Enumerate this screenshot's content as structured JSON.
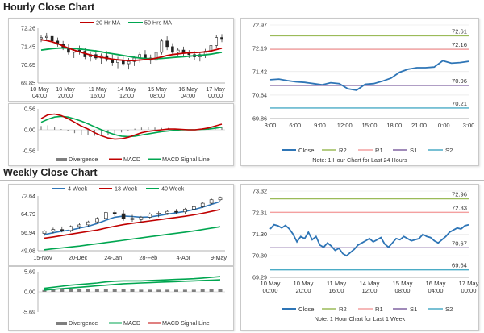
{
  "sections": {
    "hourly_title": "Hourly Close Chart",
    "weekly_title": "Weekly Close Chart"
  },
  "colors": {
    "close": "#2e75b6",
    "r2": "#9bbb59",
    "r1": "#f4a0a0",
    "s1": "#8064a2",
    "s2": "#4bacc6",
    "ma_short": "#c00000",
    "ma_long": "#00a650",
    "macd": "#c00000",
    "signal": "#00a650",
    "divergence": "#7f7f7f",
    "ma_4wk": "#2e75b6"
  },
  "chart_data": [
    {
      "id": "hourly_price",
      "type": "line",
      "legend": [
        "20 Hr MA",
        "50 Hrs MA"
      ],
      "ytick_labels": [
        "72.26",
        "71.45",
        "70.65",
        "69.85"
      ],
      "ylim": [
        69.85,
        72.26
      ],
      "xtick_labels": [
        [
          "10 May",
          "04:00"
        ],
        [
          "10 May",
          "20:00"
        ],
        [
          "11 May",
          "16:00"
        ],
        [
          "14 May",
          "12:00"
        ],
        [
          "15 May",
          "08:00"
        ],
        [
          "16 May",
          "04:00"
        ],
        [
          "17 May",
          "00:00"
        ]
      ],
      "candles": [
        [
          71.8,
          71.95,
          71.65,
          71.85
        ],
        [
          71.85,
          72.05,
          71.7,
          71.9
        ],
        [
          71.9,
          72.0,
          71.6,
          71.7
        ],
        [
          71.7,
          71.85,
          71.45,
          71.55
        ],
        [
          71.55,
          71.7,
          71.3,
          71.4
        ],
        [
          71.4,
          71.55,
          71.1,
          71.2
        ],
        [
          71.2,
          71.4,
          70.95,
          71.3
        ],
        [
          71.3,
          71.5,
          71.1,
          71.25
        ],
        [
          71.25,
          71.4,
          70.9,
          71.0
        ],
        [
          71.0,
          71.2,
          70.8,
          71.1
        ],
        [
          71.1,
          71.3,
          70.85,
          70.95
        ],
        [
          70.95,
          71.15,
          70.7,
          71.05
        ],
        [
          71.05,
          71.25,
          70.8,
          70.9
        ],
        [
          70.9,
          71.1,
          70.6,
          70.75
        ],
        [
          70.75,
          71.0,
          70.5,
          70.85
        ],
        [
          70.85,
          71.05,
          70.6,
          70.7
        ],
        [
          70.7,
          70.95,
          70.45,
          70.8
        ],
        [
          70.8,
          71.05,
          70.6,
          70.95
        ],
        [
          70.95,
          71.2,
          70.75,
          71.1
        ],
        [
          71.1,
          71.3,
          70.85,
          70.95
        ],
        [
          70.95,
          71.1,
          70.7,
          70.85
        ],
        [
          70.85,
          71.3,
          70.8,
          71.2
        ],
        [
          71.2,
          71.8,
          71.1,
          71.7
        ],
        [
          71.7,
          71.9,
          71.3,
          71.45
        ],
        [
          71.45,
          71.6,
          71.1,
          71.2
        ],
        [
          71.2,
          71.4,
          71.0,
          71.3
        ],
        [
          71.3,
          71.45,
          71.05,
          71.15
        ],
        [
          71.15,
          71.3,
          70.95,
          71.1
        ],
        [
          71.1,
          71.25,
          70.85,
          71.0
        ],
        [
          71.0,
          71.2,
          70.8,
          71.1
        ],
        [
          71.1,
          71.35,
          70.95,
          71.25
        ],
        [
          71.25,
          71.6,
          71.15,
          71.5
        ],
        [
          71.5,
          71.95,
          71.4,
          71.85
        ],
        [
          71.85,
          72.0,
          71.65,
          71.8
        ]
      ],
      "series": [
        {
          "name": "20 Hr MA",
          "values": [
            71.75,
            71.72,
            71.66,
            71.58,
            71.48,
            71.38,
            71.3,
            71.22,
            71.15,
            71.08,
            71.02,
            70.98,
            70.94,
            70.9,
            70.87,
            70.85,
            70.84,
            70.84,
            70.86,
            70.88,
            70.9,
            70.94,
            71.0,
            71.06,
            71.1,
            71.13,
            71.16,
            71.18,
            71.19,
            71.2,
            71.22,
            71.26,
            71.32,
            71.38
          ]
        },
        {
          "name": "50 Hrs MA",
          "values": [
            71.3,
            71.33,
            71.36,
            71.38,
            71.39,
            71.38,
            71.37,
            71.35,
            71.32,
            71.29,
            71.26,
            71.22,
            71.18,
            71.14,
            71.1,
            71.06,
            71.02,
            70.98,
            70.95,
            70.93,
            70.92,
            70.92,
            70.93,
            70.95,
            70.97,
            70.99,
            71.01,
            71.03,
            71.05,
            71.07,
            71.09,
            71.12,
            71.16,
            71.2
          ]
        }
      ]
    },
    {
      "id": "hourly_macd",
      "type": "line",
      "legend": [
        "Divergence",
        "MACD",
        "MACD Signal Line"
      ],
      "ytick_labels": [
        "0.56",
        "0.00",
        "-0.56"
      ],
      "ylim": [
        -0.56,
        0.56
      ],
      "series": [
        {
          "name": "MACD",
          "values": [
            0.3,
            0.4,
            0.42,
            0.38,
            0.3,
            0.2,
            0.1,
            0.02,
            -0.08,
            -0.16,
            -0.22,
            -0.25,
            -0.24,
            -0.2,
            -0.14,
            -0.08,
            -0.04,
            -0.02,
            0.0,
            0.02,
            0.02,
            0.01,
            0.0,
            0.0,
            0.02,
            0.05,
            0.1,
            0.15
          ]
        },
        {
          "name": "MACD Signal Line",
          "values": [
            0.2,
            0.28,
            0.34,
            0.36,
            0.34,
            0.29,
            0.23,
            0.16,
            0.08,
            0.0,
            -0.07,
            -0.13,
            -0.17,
            -0.18,
            -0.17,
            -0.14,
            -0.11,
            -0.08,
            -0.05,
            -0.03,
            -0.01,
            0.0,
            0.0,
            0.0,
            0.01,
            0.02,
            0.04,
            0.07
          ]
        },
        {
          "name": "Divergence",
          "values": [
            0.1,
            0.12,
            0.08,
            0.02,
            -0.04,
            -0.09,
            -0.13,
            -0.14,
            -0.16,
            -0.16,
            -0.15,
            -0.12,
            -0.07,
            -0.02,
            0.03,
            0.06,
            0.07,
            0.06,
            0.05,
            0.05,
            0.03,
            0.01,
            0.0,
            0.0,
            0.01,
            0.03,
            0.06,
            0.08
          ]
        }
      ]
    },
    {
      "id": "hourly_close_24h",
      "type": "line",
      "ytick_labels": [
        "72.97",
        "72.19",
        "71.42",
        "70.64",
        "69.86"
      ],
      "ylim": [
        69.86,
        72.97
      ],
      "xtick_labels": [
        "3:00",
        "6:00",
        "9:00",
        "12:00",
        "15:00",
        "18:00",
        "21:00",
        "0:00",
        "3:00"
      ],
      "legend": [
        "Close",
        "R2",
        "R1",
        "S1",
        "S2"
      ],
      "note": "Note: 1 Hour Chart for Last 24 Hours",
      "levels": [
        {
          "name": "R2",
          "value": 72.61,
          "label": "72.61"
        },
        {
          "name": "R1",
          "value": 72.16,
          "label": "72.16"
        },
        {
          "name": "S1",
          "value": 70.96,
          "label": "70.96"
        },
        {
          "name": "S2",
          "value": 70.21,
          "label": "70.21"
        }
      ],
      "close": [
        71.15,
        71.17,
        71.12,
        71.08,
        71.06,
        71.02,
        70.98,
        71.05,
        71.02,
        70.85,
        70.8,
        71.0,
        71.02,
        71.1,
        71.2,
        71.4,
        71.5,
        71.55,
        71.55,
        71.57,
        71.78,
        71.7,
        71.72,
        71.76
      ]
    },
    {
      "id": "weekly_price",
      "type": "line",
      "legend": [
        "4 Week",
        "13 Week",
        "40 Week"
      ],
      "ytick_labels": [
        "72.64",
        "64.79",
        "56.94",
        "49.08"
      ],
      "ylim": [
        49.08,
        72.64
      ],
      "xtick_labels": [
        "15-Nov",
        "20-Dec",
        "24-Jan",
        "28-Feb",
        "4-Apr",
        "9-May"
      ],
      "candles": [
        [
          56.5,
          58.0,
          55.5,
          57.5
        ],
        [
          57.5,
          59.0,
          56.5,
          58.2
        ],
        [
          58.2,
          59.5,
          57.0,
          57.8
        ],
        [
          57.8,
          60.0,
          57.0,
          59.5
        ],
        [
          59.5,
          61.0,
          58.5,
          60.2
        ],
        [
          60.2,
          62.0,
          59.5,
          61.5
        ],
        [
          61.5,
          63.5,
          60.8,
          63.0
        ],
        [
          63.0,
          66.0,
          62.5,
          65.5
        ],
        [
          65.5,
          66.5,
          64.0,
          65.0
        ],
        [
          65.0,
          66.5,
          62.0,
          63.0
        ],
        [
          63.0,
          64.5,
          61.5,
          62.5
        ],
        [
          62.5,
          64.0,
          61.0,
          63.5
        ],
        [
          63.5,
          65.5,
          62.8,
          64.8
        ],
        [
          64.8,
          66.0,
          63.5,
          65.2
        ],
        [
          65.2,
          66.5,
          64.5,
          66.0
        ],
        [
          66.0,
          67.0,
          65.0,
          65.8
        ],
        [
          65.8,
          67.5,
          65.0,
          67.0
        ],
        [
          67.0,
          68.5,
          66.5,
          68.0
        ],
        [
          68.0,
          70.0,
          67.5,
          69.5
        ],
        [
          69.5,
          71.5,
          69.0,
          71.0
        ],
        [
          71.0,
          72.4,
          70.5,
          72.0
        ]
      ],
      "series": [
        {
          "name": "4 Week",
          "values": [
            56.0,
            56.8,
            57.5,
            58.0,
            58.8,
            59.6,
            60.8,
            62.2,
            63.5,
            64.0,
            63.8,
            63.5,
            63.6,
            64.2,
            64.8,
            65.4,
            66.0,
            66.8,
            67.8,
            69.0,
            70.2
          ]
        },
        {
          "name": "13 Week",
          "values": [
            54.5,
            55.0,
            55.6,
            56.2,
            56.8,
            57.4,
            58.0,
            58.8,
            59.6,
            60.3,
            60.9,
            61.4,
            61.9,
            62.4,
            62.9,
            63.4,
            63.9,
            64.5,
            65.2,
            66.0,
            66.8
          ]
        },
        {
          "name": "40 Week",
          "values": [
            49.5,
            49.9,
            50.3,
            50.7,
            51.1,
            51.6,
            52.1,
            52.6,
            53.1,
            53.6,
            54.1,
            54.6,
            55.1,
            55.6,
            56.1,
            56.6,
            57.1,
            57.6,
            58.2,
            58.8,
            59.4
          ]
        }
      ]
    },
    {
      "id": "weekly_macd",
      "type": "line",
      "legend": [
        "Divergence",
        "MACD",
        "MACD Signal Line"
      ],
      "ytick_labels": [
        "5.69",
        "0.00",
        "-5.69"
      ],
      "ylim": [
        -5.69,
        5.69
      ],
      "series": [
        {
          "name": "MACD",
          "values": [
            1.0,
            1.3,
            1.6,
            1.9,
            2.1,
            2.3,
            2.5,
            2.8,
            3.0,
            3.1,
            3.1,
            3.1,
            3.2,
            3.3,
            3.4,
            3.5,
            3.6,
            3.7,
            3.9,
            4.1,
            4.3
          ]
        },
        {
          "name": "MACD Signal Line",
          "values": [
            0.5,
            0.7,
            0.9,
            1.1,
            1.3,
            1.5,
            1.7,
            1.9,
            2.1,
            2.3,
            2.4,
            2.5,
            2.6,
            2.7,
            2.8,
            2.9,
            3.0,
            3.1,
            3.2,
            3.3,
            3.4
          ]
        },
        {
          "name": "Divergence",
          "values": [
            0.5,
            0.6,
            0.7,
            0.8,
            0.8,
            0.8,
            0.8,
            0.9,
            0.9,
            0.8,
            0.7,
            0.6,
            0.6,
            0.6,
            0.6,
            0.6,
            0.6,
            0.6,
            0.7,
            0.8,
            0.9
          ]
        }
      ]
    },
    {
      "id": "weekly_close_1w",
      "type": "line",
      "ytick_labels": [
        "73.32",
        "72.31",
        "71.30",
        "70.30",
        "69.29"
      ],
      "ylim": [
        69.29,
        73.32
      ],
      "xtick_labels": [
        [
          "10 May",
          "00:00"
        ],
        [
          "10 May",
          "20:00"
        ],
        [
          "11 May",
          "16:00"
        ],
        [
          "14 May",
          "12:00"
        ],
        [
          "15 May",
          "08:00"
        ],
        [
          "16 May",
          "04:00"
        ],
        [
          "17 May",
          "00:00"
        ]
      ],
      "legend": [
        "Close",
        "R2",
        "R1",
        "S1",
        "S2"
      ],
      "note": "Note: 1 Hour Chart for Last 1 Week",
      "levels": [
        {
          "name": "R2",
          "value": 72.96,
          "label": "72.96"
        },
        {
          "name": "R1",
          "value": 72.33,
          "label": "72.33"
        },
        {
          "name": "S1",
          "value": 70.67,
          "label": "70.67"
        },
        {
          "name": "S2",
          "value": 69.64,
          "label": "69.64"
        }
      ],
      "close": [
        71.55,
        71.75,
        71.7,
        71.6,
        71.72,
        71.55,
        71.3,
        70.95,
        71.2,
        71.1,
        71.4,
        71.05,
        71.2,
        70.8,
        70.7,
        70.9,
        70.75,
        70.55,
        70.65,
        70.4,
        70.3,
        70.45,
        70.6,
        70.8,
        70.9,
        71.0,
        71.1,
        70.95,
        71.05,
        71.15,
        70.85,
        70.7,
        70.9,
        71.1,
        71.05,
        71.2,
        71.1,
        71.0,
        71.05,
        71.1,
        71.3,
        71.2,
        71.15,
        71.0,
        70.9,
        71.05,
        71.2,
        71.4,
        71.5,
        71.6,
        71.55,
        71.7,
        71.75
      ]
    }
  ]
}
